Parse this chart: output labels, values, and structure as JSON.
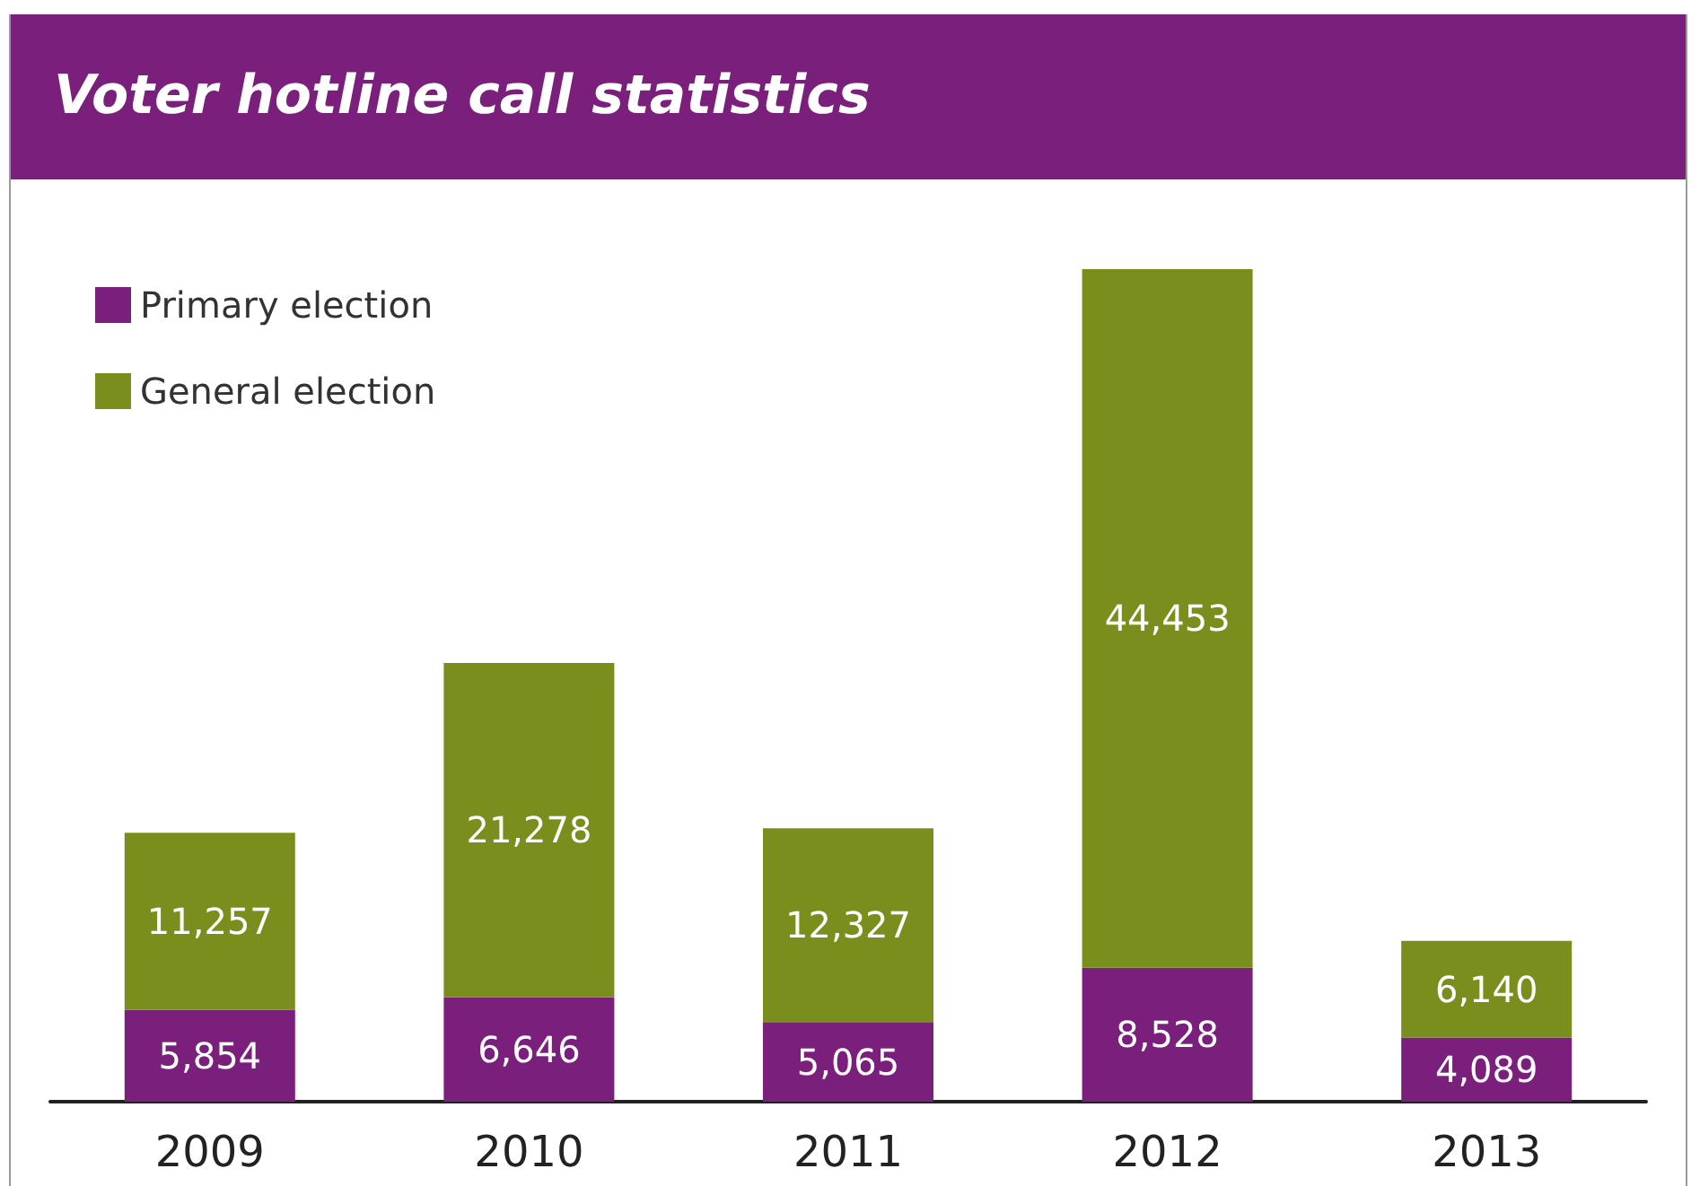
{
  "chart_data": {
    "type": "bar",
    "title": "Voter hotline call statistics",
    "categories": [
      "2009",
      "2010",
      "2011",
      "2012",
      "2013"
    ],
    "stacked": true,
    "series": [
      {
        "name": "Primary election",
        "color": "#7b1f7d",
        "values": [
          5854,
          6646,
          5065,
          8528,
          4089
        ],
        "value_labels": [
          "5,854",
          "6,646",
          "5,065",
          "8,528",
          "4,089"
        ]
      },
      {
        "name": "General election",
        "color": "#7a8e1d",
        "values": [
          11257,
          21278,
          12327,
          44453,
          6140
        ],
        "value_labels": [
          "11,257",
          "21,278",
          "12,327",
          "44,453",
          "6,140"
        ]
      }
    ],
    "legend": "top left",
    "tick_labels": "x"
  }
}
